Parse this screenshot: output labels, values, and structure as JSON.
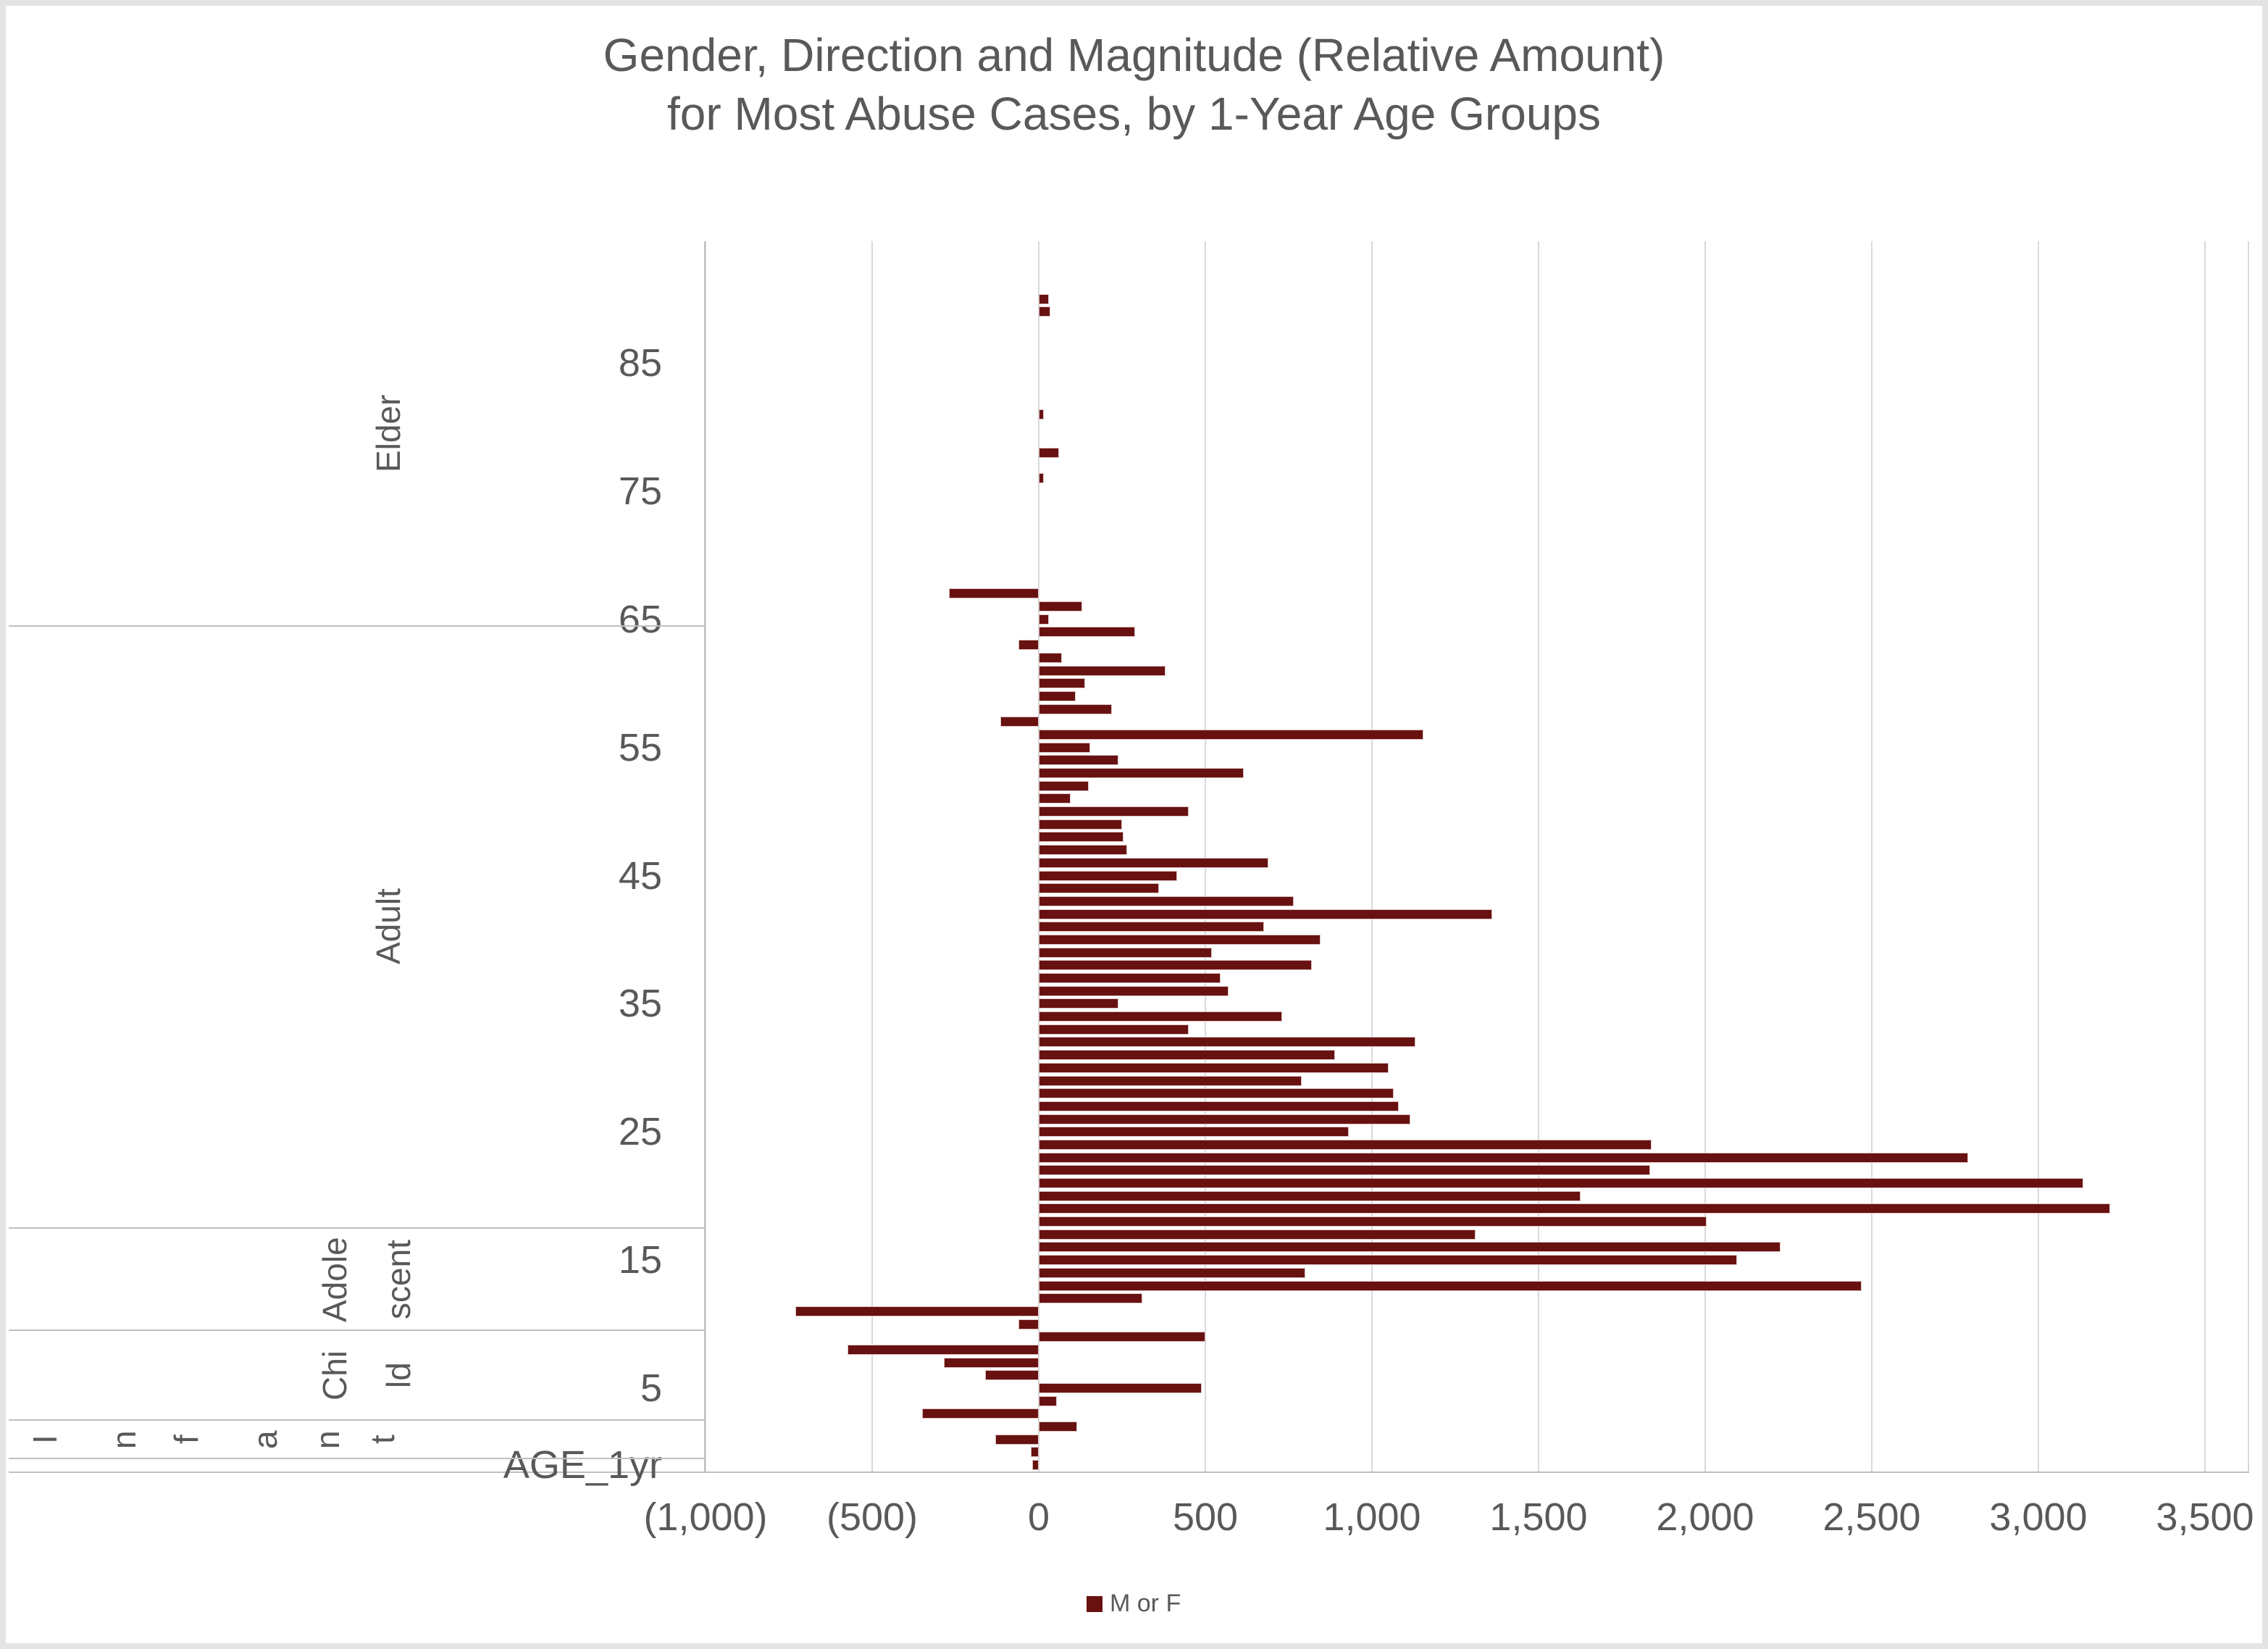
{
  "header": {
    "title_line1": "Gender, Direction and Magnitude (Relative Amount)",
    "title_line2": "for Most Abuse Cases, by 1-Year Age Groups"
  },
  "legend": {
    "label": "M or F",
    "color": "#681111"
  },
  "colors": {
    "bar": "#681111",
    "bar_border": "#dcc3c3",
    "gridline": "#d9d9d9",
    "axis_line": "#bfbfbf",
    "text": "#595959",
    "frame": "#e4e4e4"
  },
  "chart_data": {
    "type": "bar",
    "orientation": "horizontal",
    "title": "Gender, Direction and Magnitude (Relative Amount) for Most Abuse Cases, by 1-Year Age Groups",
    "xlabel": "",
    "ylabel": "AGE_1yr",
    "xlim": [
      -1000,
      3500
    ],
    "grid": "vertical-only",
    "legend_position": "bottom",
    "series_name": "M or F",
    "categories": [
      "94",
      "93",
      "92",
      "91",
      "90",
      "89",
      "88",
      "87",
      "86",
      "85",
      "84",
      "83",
      "82",
      "81",
      "80",
      "79",
      "78",
      "77",
      "76",
      "75",
      "74",
      "73",
      "72",
      "71",
      "70",
      "69",
      "68",
      "67",
      "66",
      "65",
      "64",
      "63",
      "62",
      "61",
      "60",
      "59",
      "58",
      "57",
      "56",
      "55",
      "54",
      "53",
      "52",
      "51",
      "50",
      "49",
      "48",
      "47",
      "46",
      "45",
      "44",
      "43",
      "42",
      "41",
      "40",
      "39",
      "38",
      "37",
      "36",
      "35",
      "34",
      "33",
      "32",
      "31",
      "30",
      "29",
      "28",
      "27",
      "26",
      "25",
      "24",
      "23",
      "22",
      "21",
      "20",
      "19",
      "18",
      "17",
      "16",
      "15",
      "14",
      "13",
      "12",
      "11",
      "10",
      "9",
      "8",
      "7",
      "6",
      "5",
      "4",
      "3",
      "2",
      "1",
      "0",
      "AGE_1yr"
    ],
    "values": [
      0,
      0,
      0,
      0,
      30,
      35,
      0,
      0,
      0,
      0,
      0,
      0,
      0,
      15,
      0,
      0,
      60,
      0,
      15,
      0,
      0,
      0,
      0,
      0,
      0,
      0,
      0,
      -270,
      130,
      30,
      290,
      -60,
      70,
      380,
      140,
      110,
      220,
      -115,
      1155,
      155,
      240,
      615,
      150,
      95,
      450,
      250,
      255,
      265,
      690,
      415,
      360,
      765,
      1360,
      675,
      845,
      520,
      820,
      545,
      570,
      240,
      730,
      450,
      1130,
      890,
      1050,
      790,
      1065,
      1080,
      1115,
      930,
      1840,
      2790,
      1835,
      3135,
      1625,
      3215,
      2005,
      1310,
      2225,
      2095,
      800,
      2470,
      310,
      -730,
      -60,
      500,
      -575,
      -285,
      -160,
      490,
      55,
      -350,
      115,
      -130,
      -25,
      -20
    ],
    "y_ticks": [
      "85",
      "75",
      "65",
      "55",
      "45",
      "35",
      "25",
      "15",
      "5",
      "AGE_1yr"
    ],
    "x_ticks": [
      {
        "value": -1000,
        "label": "(1,000)"
      },
      {
        "value": -500,
        "label": "(500)"
      },
      {
        "value": 0,
        "label": "0"
      },
      {
        "value": 500,
        "label": "500"
      },
      {
        "value": 1000,
        "label": "1,000"
      },
      {
        "value": 1500,
        "label": "1,500"
      },
      {
        "value": 2000,
        "label": "2,000"
      },
      {
        "value": 2500,
        "label": "2,500"
      },
      {
        "value": 3000,
        "label": "3,000"
      },
      {
        "value": 3500,
        "label": "3,500"
      }
    ],
    "groups": [
      {
        "label": "Elder",
        "lines": [
          "Elder"
        ],
        "from": "94",
        "to": "65"
      },
      {
        "label": "Adult",
        "lines": [
          "Adult"
        ],
        "from": "64",
        "to": "18"
      },
      {
        "label": "Adolescent",
        "lines": [
          "Adole",
          "scent"
        ],
        "from": "17",
        "to": "10"
      },
      {
        "label": "Child",
        "lines": [
          "Chi",
          "ld"
        ],
        "from": "9",
        "to": "3"
      },
      {
        "label": "Infant",
        "letters": [
          "I",
          "n",
          "f",
          "a",
          "n",
          "t"
        ],
        "from": "2",
        "to": "0"
      }
    ]
  }
}
